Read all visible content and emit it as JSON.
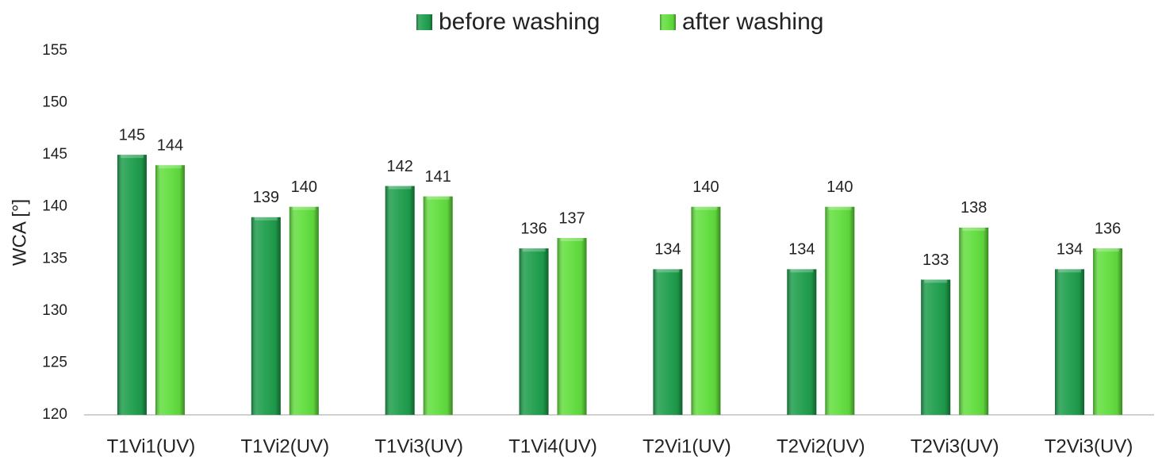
{
  "chart_data": {
    "type": "bar",
    "y_label": "WCA [°]",
    "categories": [
      "T1Vi1(UV)",
      "T1Vi2(UV)",
      "T1Vi3(UV)",
      "T1Vi4(UV)",
      "T2Vi1(UV)",
      "T2Vi2(UV)",
      "T2Vi3(UV)",
      "T2Vi3(UV)"
    ],
    "series": [
      {
        "name": "before washing",
        "color": "#1e9e4c",
        "values": [
          145,
          139,
          142,
          136,
          134,
          134,
          133,
          134
        ]
      },
      {
        "name": "after washing",
        "color": "#62de3e",
        "values": [
          144,
          140,
          141,
          137,
          140,
          140,
          138,
          136
        ]
      }
    ],
    "ylim": [
      120,
      155
    ],
    "yticks": [
      120,
      125,
      130,
      135,
      140,
      145,
      150,
      155
    ],
    "grid": false,
    "legend": "top"
  }
}
